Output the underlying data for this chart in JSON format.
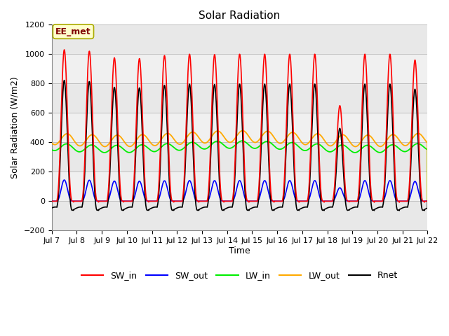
{
  "title": "Solar Radiation",
  "ylabel": "Solar Radiation (W/m2)",
  "xlabel": "Time",
  "ylim": [
    -200,
    1200
  ],
  "yticks": [
    -200,
    0,
    200,
    400,
    600,
    800,
    1000,
    1200
  ],
  "xtick_labels": [
    "Jul 7",
    "Jul 8",
    "Jul 9",
    "Jul 10",
    "Jul 11",
    "Jul 12",
    "Jul 13",
    "Jul 14",
    "Jul 15",
    "Jul 16",
    "Jul 17",
    "Jul 18",
    "Jul 19",
    "Jul 20",
    "Jul 21",
    "Jul 22"
  ],
  "colors": {
    "SW_in": "#ff0000",
    "SW_out": "#0000ff",
    "LW_in": "#00ee00",
    "LW_out": "#ffaa00",
    "Rnet": "#000000"
  },
  "annotation_text": "EE_met",
  "annotation_color": "#800000",
  "annotation_bg": "#ffffcc",
  "background_color": "#ffffff",
  "plot_bg": "#e8e8e8",
  "band_color": "#f0f0f0",
  "title_fontsize": 11,
  "axis_fontsize": 9,
  "tick_fontsize": 8,
  "legend_fontsize": 9
}
